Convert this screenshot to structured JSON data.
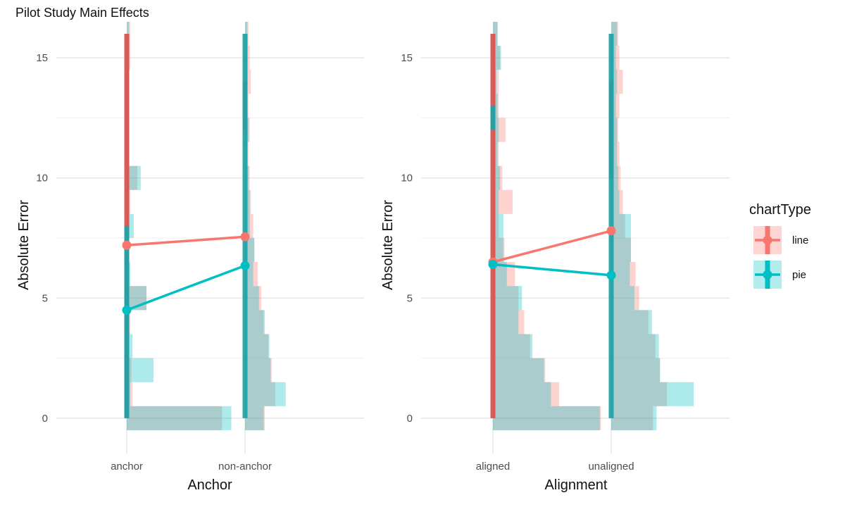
{
  "title": "Pilot Study Main Effects",
  "colors": {
    "line": "#F8766D",
    "pie": "#00BFC4",
    "line_dark": "#D9534F",
    "pie_dark": "#1FA3A8",
    "overlap": "#9E8686",
    "grid": "#E5E5E5"
  },
  "legend": {
    "title": "chartType",
    "position": "right",
    "items": [
      {
        "label": "line",
        "color": "#F8766D"
      },
      {
        "label": "pie",
        "color": "#00BFC4"
      }
    ]
  },
  "chart_data": [
    {
      "type": "line",
      "panel": "left",
      "xlabel": "Anchor",
      "ylabel": "Absolute Error",
      "categories": [
        "anchor",
        "non-anchor"
      ],
      "ylim": [
        -1,
        16
      ],
      "yticks": [
        0,
        5,
        10,
        15
      ],
      "grid": true,
      "series": [
        {
          "name": "line",
          "values": [
            7.2,
            7.55
          ]
        },
        {
          "name": "pie",
          "values": [
            4.5,
            6.35
          ]
        }
      ],
      "ranges": [
        {
          "category": 0,
          "series": "line",
          "y0": 0,
          "y1": 16
        },
        {
          "category": 0,
          "series": "pie",
          "y0": 0,
          "y1": 8
        },
        {
          "category": 1,
          "series": "line",
          "y0": 12,
          "y1": 14
        },
        {
          "category": 1,
          "series": "pie",
          "y0": 0,
          "y1": 16
        }
      ],
      "histograms": [
        {
          "category": 0,
          "series": "line",
          "bins": [
            [
              -0.5,
              0.5,
              0.82
            ],
            [
              0.5,
              1.5,
              0.05
            ],
            [
              1.5,
              2.5,
              0.04
            ],
            [
              2.5,
              3.5,
              0.02
            ],
            [
              3.5,
              4.5,
              0.03
            ],
            [
              4.5,
              5.5,
              0.17
            ],
            [
              5.5,
              6.5,
              0.02
            ],
            [
              6.5,
              7.5,
              0.02
            ],
            [
              7.5,
              8.5,
              0.02
            ],
            [
              8.5,
              9.5,
              0.03
            ],
            [
              9.5,
              10.5,
              0.09
            ],
            [
              10.5,
              11.5,
              0.02
            ],
            [
              11.5,
              12.5,
              0.02
            ],
            [
              12.5,
              13.5,
              0.02
            ],
            [
              13.5,
              14.5,
              0.02
            ],
            [
              14.5,
              15.5,
              0.03
            ],
            [
              15.5,
              16.5,
              0.03
            ]
          ]
        },
        {
          "category": 0,
          "series": "pie",
          "bins": [
            [
              -0.5,
              0.5,
              0.9
            ],
            [
              0.5,
              1.5,
              0.03
            ],
            [
              1.5,
              2.5,
              0.23
            ],
            [
              2.5,
              3.5,
              0.05
            ],
            [
              3.5,
              4.5,
              0.02
            ],
            [
              4.5,
              5.5,
              0.17
            ],
            [
              5.5,
              6.5,
              0.03
            ],
            [
              6.5,
              7.5,
              0.02
            ],
            [
              7.5,
              8.5,
              0.06
            ],
            [
              8.5,
              9.5,
              0.02
            ],
            [
              9.5,
              10.5,
              0.12
            ],
            [
              10.5,
              11.5,
              0.02
            ],
            [
              11.5,
              12.5,
              0.02
            ],
            [
              12.5,
              13.5,
              0.02
            ],
            [
              13.5,
              14.5,
              0.02
            ],
            [
              14.5,
              15.5,
              0.02
            ],
            [
              15.5,
              16.5,
              0.02
            ]
          ]
        },
        {
          "category": 1,
          "series": "line",
          "bins": [
            [
              -0.5,
              0.5,
              0.17
            ],
            [
              0.5,
              1.5,
              0.26
            ],
            [
              1.5,
              2.5,
              0.23
            ],
            [
              2.5,
              3.5,
              0.2
            ],
            [
              3.5,
              4.5,
              0.16
            ],
            [
              4.5,
              5.5,
              0.14
            ],
            [
              5.5,
              6.5,
              0.11
            ],
            [
              6.5,
              7.5,
              0.08
            ],
            [
              7.5,
              8.5,
              0.07
            ],
            [
              8.5,
              9.5,
              0.05
            ],
            [
              9.5,
              10.5,
              0.04
            ],
            [
              10.5,
              11.5,
              0.03
            ],
            [
              11.5,
              12.5,
              0.04
            ],
            [
              12.5,
              13.5,
              0.03
            ],
            [
              13.5,
              14.5,
              0.05
            ],
            [
              14.5,
              15.5,
              0.04
            ],
            [
              15.5,
              16.5,
              0.03
            ]
          ]
        },
        {
          "category": 1,
          "series": "pie",
          "bins": [
            [
              -0.5,
              0.5,
              0.16
            ],
            [
              0.5,
              1.5,
              0.35
            ],
            [
              1.5,
              2.5,
              0.22
            ],
            [
              2.5,
              3.5,
              0.21
            ],
            [
              3.5,
              4.5,
              0.17
            ],
            [
              4.5,
              5.5,
              0.12
            ],
            [
              5.5,
              6.5,
              0.07
            ],
            [
              6.5,
              7.5,
              0.08
            ],
            [
              7.5,
              8.5,
              0.04
            ],
            [
              8.5,
              9.5,
              0.04
            ],
            [
              9.5,
              10.5,
              0.03
            ],
            [
              10.5,
              11.5,
              0.02
            ],
            [
              11.5,
              12.5,
              0.03
            ],
            [
              12.5,
              13.5,
              0.02
            ],
            [
              13.5,
              14.5,
              0.02
            ],
            [
              14.5,
              15.5,
              0.02
            ],
            [
              15.5,
              16.5,
              0.02
            ]
          ]
        }
      ]
    },
    {
      "type": "line",
      "panel": "right",
      "xlabel": "Alignment",
      "ylabel": "Absolute Error",
      "categories": [
        "aligned",
        "unaligned"
      ],
      "ylim": [
        -1,
        16
      ],
      "yticks": [
        0,
        5,
        10,
        15
      ],
      "grid": true,
      "series": [
        {
          "name": "line",
          "values": [
            6.5,
            7.8
          ]
        },
        {
          "name": "pie",
          "values": [
            6.4,
            5.95
          ]
        }
      ],
      "ranges": [
        {
          "category": 0,
          "series": "line",
          "y0": 0,
          "y1": 16
        },
        {
          "category": 0,
          "series": "pie",
          "y0": 12,
          "y1": 13
        },
        {
          "category": 1,
          "series": "line",
          "y0": 10,
          "y1": 14
        },
        {
          "category": 1,
          "series": "pie",
          "y0": 0,
          "y1": 16
        }
      ],
      "histograms": [
        {
          "category": 0,
          "series": "line",
          "bins": [
            [
              -0.5,
              0.5,
              0.93
            ],
            [
              0.5,
              1.5,
              0.57
            ],
            [
              1.5,
              2.5,
              0.45
            ],
            [
              2.5,
              3.5,
              0.32
            ],
            [
              3.5,
              4.5,
              0.27
            ],
            [
              4.5,
              5.5,
              0.22
            ],
            [
              5.5,
              6.5,
              0.19
            ],
            [
              6.5,
              7.5,
              0.1
            ],
            [
              7.5,
              8.5,
              0.05
            ],
            [
              8.5,
              9.5,
              0.17
            ],
            [
              9.5,
              10.5,
              0.08
            ],
            [
              10.5,
              11.5,
              0.05
            ],
            [
              11.5,
              12.5,
              0.11
            ],
            [
              12.5,
              13.5,
              0.05
            ],
            [
              13.5,
              14.5,
              0.05
            ],
            [
              14.5,
              15.5,
              0.06
            ],
            [
              15.5,
              16.5,
              0.04
            ]
          ]
        },
        {
          "category": 0,
          "series": "pie",
          "bins": [
            [
              -0.5,
              0.5,
              0.92
            ],
            [
              0.5,
              1.5,
              0.5
            ],
            [
              1.5,
              2.5,
              0.44
            ],
            [
              2.5,
              3.5,
              0.34
            ],
            [
              3.5,
              4.5,
              0.22
            ],
            [
              4.5,
              5.5,
              0.25
            ],
            [
              5.5,
              6.5,
              0.12
            ],
            [
              6.5,
              7.5,
              0.09
            ],
            [
              7.5,
              8.5,
              0.09
            ],
            [
              8.5,
              9.5,
              0.05
            ],
            [
              9.5,
              10.5,
              0.06
            ],
            [
              10.5,
              11.5,
              0.04
            ],
            [
              11.5,
              12.5,
              0.05
            ],
            [
              12.5,
              13.5,
              0.04
            ],
            [
              13.5,
              14.5,
              0.03
            ],
            [
              14.5,
              15.5,
              0.07
            ],
            [
              15.5,
              16.5,
              0.04
            ]
          ]
        },
        {
          "category": 1,
          "series": "line",
          "bins": [
            [
              -0.5,
              0.5,
              0.36
            ],
            [
              0.5,
              1.5,
              0.48
            ],
            [
              1.5,
              2.5,
              0.42
            ],
            [
              2.5,
              3.5,
              0.38
            ],
            [
              3.5,
              4.5,
              0.32
            ],
            [
              4.5,
              5.5,
              0.24
            ],
            [
              5.5,
              6.5,
              0.21
            ],
            [
              6.5,
              7.5,
              0.17
            ],
            [
              7.5,
              8.5,
              0.12
            ],
            [
              8.5,
              9.5,
              0.1
            ],
            [
              9.5,
              10.5,
              0.08
            ],
            [
              10.5,
              11.5,
              0.07
            ],
            [
              11.5,
              12.5,
              0.06
            ],
            [
              12.5,
              13.5,
              0.07
            ],
            [
              13.5,
              14.5,
              0.1
            ],
            [
              14.5,
              15.5,
              0.07
            ],
            [
              15.5,
              16.5,
              0.06
            ]
          ]
        },
        {
          "category": 1,
          "series": "pie",
          "bins": [
            [
              -0.5,
              0.5,
              0.39
            ],
            [
              0.5,
              1.5,
              0.71
            ],
            [
              1.5,
              2.5,
              0.42
            ],
            [
              2.5,
              3.5,
              0.41
            ],
            [
              3.5,
              4.5,
              0.35
            ],
            [
              4.5,
              5.5,
              0.2
            ],
            [
              5.5,
              6.5,
              0.16
            ],
            [
              6.5,
              7.5,
              0.17
            ],
            [
              7.5,
              8.5,
              0.17
            ],
            [
              8.5,
              9.5,
              0.07
            ],
            [
              9.5,
              10.5,
              0.06
            ],
            [
              10.5,
              11.5,
              0.05
            ],
            [
              11.5,
              12.5,
              0.05
            ],
            [
              12.5,
              13.5,
              0.04
            ],
            [
              13.5,
              14.5,
              0.05
            ],
            [
              14.5,
              15.5,
              0.04
            ],
            [
              15.5,
              16.5,
              0.05
            ]
          ]
        }
      ]
    }
  ]
}
